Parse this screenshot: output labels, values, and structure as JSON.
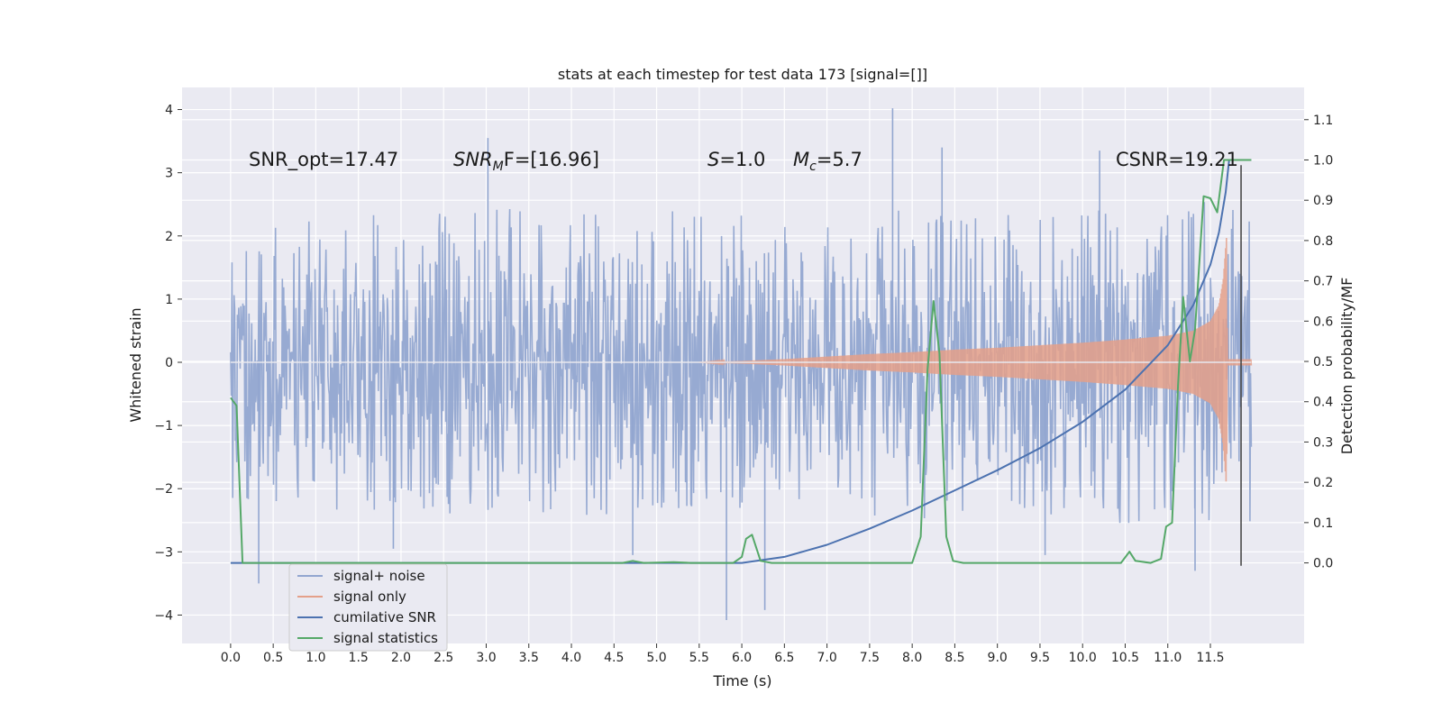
{
  "chart_data": {
    "type": "line",
    "title": "stats at each timestep for test data 173 [signal=[]]",
    "xlabel": "Time (s)",
    "ylabel_left": "Whitened strain",
    "ylabel_right": "Detection probability/MF",
    "xlim": [
      -0.57,
      12.6
    ],
    "ylim_left": [
      -4.45,
      4.35
    ],
    "ylim_right": [
      -0.2,
      1.18
    ],
    "grid": true,
    "legend_position": "lower-left",
    "x_ticks": [
      0.0,
      0.5,
      1.0,
      1.5,
      2.0,
      2.5,
      3.0,
      3.5,
      4.0,
      4.5,
      5.0,
      5.5,
      6.0,
      6.5,
      7.0,
      7.5,
      8.0,
      8.5,
      9.0,
      9.5,
      10.0,
      10.5,
      11.0,
      11.5
    ],
    "x_tick_labels": [
      "0.0",
      "0.5",
      "1.0",
      "1.5",
      "2.0",
      "2.5",
      "3.0",
      "3.5",
      "4.0",
      "4.5",
      "5.0",
      "5.5",
      "6.0",
      "6.5",
      "7.0",
      "7.5",
      "8.0",
      "8.5",
      "9.0",
      "9.5",
      "10.0",
      "10.5",
      "11.0",
      "11.5"
    ],
    "y_ticks_left": [
      4,
      3,
      2,
      1,
      0,
      -1,
      -2,
      -3,
      -4
    ],
    "y_tick_labels_left": [
      "4",
      "3",
      "2",
      "1",
      "0",
      "−1",
      "−2",
      "−3",
      "−4"
    ],
    "y_ticks_right": [
      1.1,
      1.0,
      0.9,
      0.8,
      0.7,
      0.6,
      0.5,
      0.4,
      0.3,
      0.2,
      0.1,
      0.0
    ],
    "y_tick_labels_right": [
      "1.1",
      "1.0",
      "0.9",
      "0.8",
      "0.7",
      "0.6",
      "0.5",
      "0.4",
      "0.3",
      "0.2",
      "0.1",
      "0.0"
    ],
    "annotations": [
      {
        "id": "snr-opt",
        "text": "SNR_opt=17.47"
      },
      {
        "id": "snr-mf",
        "text_main": "SNR",
        "text_sub": "M",
        "text_rest": "F=[16.96]"
      },
      {
        "id": "spin",
        "text_italic": "S",
        "text_rest": "=1.0"
      },
      {
        "id": "chirp-mass",
        "text_main": "M",
        "text_sub": "c",
        "text_rest": "=5.7"
      },
      {
        "id": "csnr",
        "text": "CSNR=19.21"
      }
    ],
    "series": [
      {
        "name": "signal+ noise",
        "color": "#92a6d0",
        "axis": "left",
        "description": "whitened strain noise, band roughly ±1.4 with spikes",
        "x_range": [
          0.0,
          11.98
        ],
        "envelope_upper": [
          [
            0.0,
            2.3
          ],
          [
            1.0,
            2.4
          ],
          [
            2.0,
            2.4
          ],
          [
            3.0,
            2.5
          ],
          [
            4.0,
            2.4
          ],
          [
            5.0,
            2.4
          ],
          [
            6.0,
            2.4
          ],
          [
            7.0,
            2.4
          ],
          [
            8.0,
            2.5
          ],
          [
            9.0,
            2.4
          ],
          [
            10.0,
            2.5
          ],
          [
            11.0,
            2.6
          ],
          [
            11.98,
            2.5
          ]
        ],
        "envelope_lower": [
          [
            0.0,
            -2.3
          ],
          [
            1.0,
            -2.4
          ],
          [
            2.0,
            -2.4
          ],
          [
            3.0,
            -2.4
          ],
          [
            4.0,
            -2.5
          ],
          [
            5.0,
            -2.4
          ],
          [
            6.0,
            -2.4
          ],
          [
            7.0,
            -2.4
          ],
          [
            8.0,
            -2.5
          ],
          [
            9.0,
            -2.4
          ],
          [
            10.0,
            -2.5
          ],
          [
            11.0,
            -2.6
          ],
          [
            11.98,
            -2.6
          ]
        ],
        "spikes": [
          [
            3.02,
            3.55
          ],
          [
            7.77,
            4.02
          ],
          [
            8.35,
            3.4
          ],
          [
            10.2,
            3.35
          ],
          [
            5.82,
            -4.08
          ],
          [
            6.27,
            -3.92
          ],
          [
            0.33,
            -3.5
          ],
          [
            11.32,
            -3.3
          ],
          [
            4.72,
            -3.05
          ],
          [
            1.91,
            -2.95
          ],
          [
            9.56,
            -3.05
          ]
        ]
      },
      {
        "name": "signal only",
        "color": "#e4a08a",
        "axis": "left",
        "description": "chirp amplitude envelope",
        "envelope": [
          [
            5.5,
            0.0
          ],
          [
            6.0,
            0.02
          ],
          [
            6.5,
            0.05
          ],
          [
            7.0,
            0.09
          ],
          [
            7.5,
            0.13
          ],
          [
            8.0,
            0.16
          ],
          [
            8.5,
            0.2
          ],
          [
            9.0,
            0.23
          ],
          [
            9.5,
            0.27
          ],
          [
            10.0,
            0.31
          ],
          [
            10.5,
            0.36
          ],
          [
            11.0,
            0.42
          ],
          [
            11.3,
            0.5
          ],
          [
            11.5,
            0.65
          ],
          [
            11.6,
            0.9
          ],
          [
            11.65,
            1.3
          ],
          [
            11.69,
            2.0
          ],
          [
            11.7,
            0.05
          ],
          [
            11.98,
            0.05
          ]
        ]
      },
      {
        "name": "cumilative SNR",
        "color": "#4c72b0",
        "axis": "right",
        "points": [
          [
            0.0,
            0.0
          ],
          [
            6.0,
            0.0
          ],
          [
            6.5,
            0.015
          ],
          [
            7.0,
            0.045
          ],
          [
            7.5,
            0.085
          ],
          [
            8.0,
            0.13
          ],
          [
            8.5,
            0.18
          ],
          [
            9.0,
            0.23
          ],
          [
            9.5,
            0.285
          ],
          [
            10.0,
            0.35
          ],
          [
            10.5,
            0.43
          ],
          [
            11.0,
            0.54
          ],
          [
            11.3,
            0.64
          ],
          [
            11.5,
            0.74
          ],
          [
            11.6,
            0.82
          ],
          [
            11.68,
            0.92
          ],
          [
            11.72,
            1.0
          ],
          [
            11.98,
            1.0
          ]
        ]
      },
      {
        "name": "signal statistics",
        "color": "#55a868",
        "axis": "right",
        "points": [
          [
            0.0,
            0.41
          ],
          [
            0.07,
            0.39
          ],
          [
            0.14,
            0.0
          ],
          [
            4.6,
            0.0
          ],
          [
            4.72,
            0.005
          ],
          [
            4.85,
            0.0
          ],
          [
            5.2,
            0.002
          ],
          [
            5.4,
            0.0
          ],
          [
            5.9,
            0.0
          ],
          [
            6.0,
            0.015
          ],
          [
            6.05,
            0.06
          ],
          [
            6.12,
            0.07
          ],
          [
            6.22,
            0.005
          ],
          [
            6.35,
            0.0
          ],
          [
            8.0,
            0.0
          ],
          [
            8.1,
            0.065
          ],
          [
            8.18,
            0.48
          ],
          [
            8.25,
            0.65
          ],
          [
            8.32,
            0.52
          ],
          [
            8.4,
            0.065
          ],
          [
            8.48,
            0.005
          ],
          [
            8.6,
            0.0
          ],
          [
            10.3,
            0.0
          ],
          [
            10.45,
            0.0
          ],
          [
            10.55,
            0.028
          ],
          [
            10.62,
            0.005
          ],
          [
            10.8,
            0.0
          ],
          [
            10.92,
            0.01
          ],
          [
            10.98,
            0.09
          ],
          [
            11.05,
            0.1
          ],
          [
            11.12,
            0.44
          ],
          [
            11.18,
            0.66
          ],
          [
            11.26,
            0.5
          ],
          [
            11.32,
            0.58
          ],
          [
            11.42,
            0.91
          ],
          [
            11.5,
            0.905
          ],
          [
            11.58,
            0.87
          ],
          [
            11.66,
            1.0
          ],
          [
            11.75,
            1.0
          ],
          [
            11.98,
            1.0
          ]
        ]
      }
    ],
    "vertical_marker": {
      "color": "#404040",
      "x": 11.86,
      "y_left_range": [
        -3.22,
        3.12
      ]
    }
  }
}
